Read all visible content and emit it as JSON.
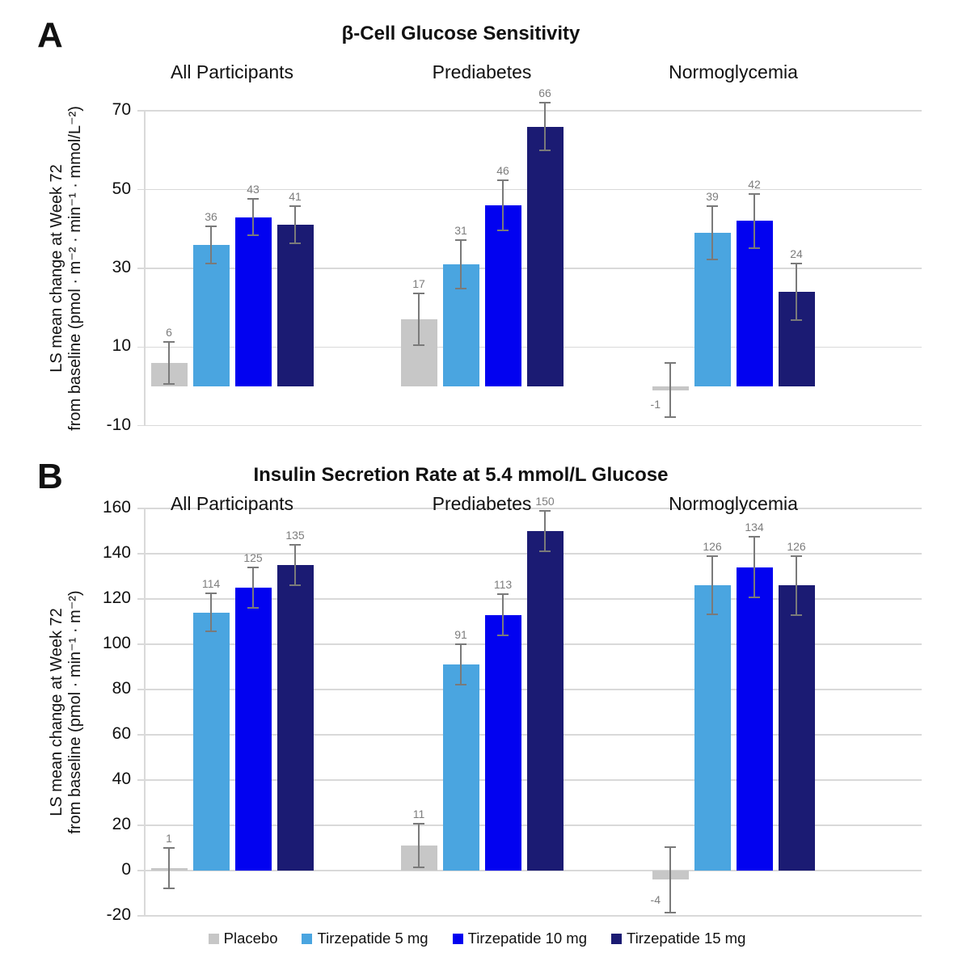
{
  "chart_data": [
    {
      "panel_label": "A",
      "type": "bar",
      "title": "β-Cell Glucose Sensitivity",
      "ylabel_line1": "LS mean change at Week 72",
      "ylabel_line2": "from baseline (pmol · m⁻² · min⁻¹ · mmol/L⁻²)",
      "ylim": [
        -10,
        70
      ],
      "yticks": [
        70,
        50,
        30,
        10,
        -10
      ],
      "grid": true,
      "legend_position": "bottom",
      "categories": [
        "All Participants",
        "Prediabetes",
        "Normoglycemia"
      ],
      "series": [
        {
          "name": "Placebo",
          "color": "#c7c7c7",
          "values": [
            6,
            17,
            -1
          ],
          "errors": [
            5.3,
            6.6,
            6.9
          ]
        },
        {
          "name": "Tirzepatide 5 mg",
          "color": "#4aa5e0",
          "values": [
            36,
            31,
            39
          ],
          "errors": [
            4.7,
            6.2,
            6.7
          ]
        },
        {
          "name": "Tirzepatide 10 mg",
          "color": "#0202f0",
          "values": [
            43,
            46,
            42
          ],
          "errors": [
            4.7,
            6.3,
            6.8
          ]
        },
        {
          "name": "Tirzepatide 15 mg",
          "color": "#1b1b73",
          "values": [
            41,
            66,
            24
          ],
          "errors": [
            4.7,
            6.1,
            7.2
          ]
        }
      ]
    },
    {
      "panel_label": "B",
      "type": "bar",
      "title": "Insulin Secretion Rate at 5.4 mmol/L Glucose",
      "ylabel_line1": "LS mean change at Week 72",
      "ylabel_line2": "from baseline (pmol · min⁻¹ · m⁻²)",
      "ylim": [
        -20,
        160
      ],
      "yticks": [
        160,
        140,
        120,
        100,
        80,
        60,
        40,
        20,
        0,
        -20
      ],
      "grid": true,
      "legend_position": "bottom",
      "categories": [
        "All Participants",
        "Prediabetes",
        "Normoglycemia"
      ],
      "series": [
        {
          "name": "Placebo",
          "color": "#c7c7c7",
          "values": [
            1,
            11,
            -4
          ],
          "errors": [
            9.0,
            9.6,
            14.4
          ]
        },
        {
          "name": "Tirzepatide 5 mg",
          "color": "#4aa5e0",
          "values": [
            114,
            91,
            126
          ],
          "errors": [
            8.4,
            9.0,
            12.9
          ]
        },
        {
          "name": "Tirzepatide 10 mg",
          "color": "#0202f0",
          "values": [
            125,
            113,
            134
          ],
          "errors": [
            8.8,
            9.0,
            13.4
          ]
        },
        {
          "name": "Tirzepatide 15 mg",
          "color": "#1b1b73",
          "values": [
            135,
            150,
            126
          ],
          "errors": [
            8.9,
            8.9,
            13.0
          ]
        }
      ]
    }
  ],
  "legend": {
    "items": [
      "Placebo",
      "Tirzepatide 5 mg",
      "Tirzepatide 10 mg",
      "Tirzepatide 15 mg"
    ]
  },
  "style_colors": {
    "error_bar": "#7a7a7a",
    "gridline": "#d9d9d9",
    "axis_line": "#d9d9d9",
    "value_label": "#7d7d7d",
    "text": "#111111"
  }
}
